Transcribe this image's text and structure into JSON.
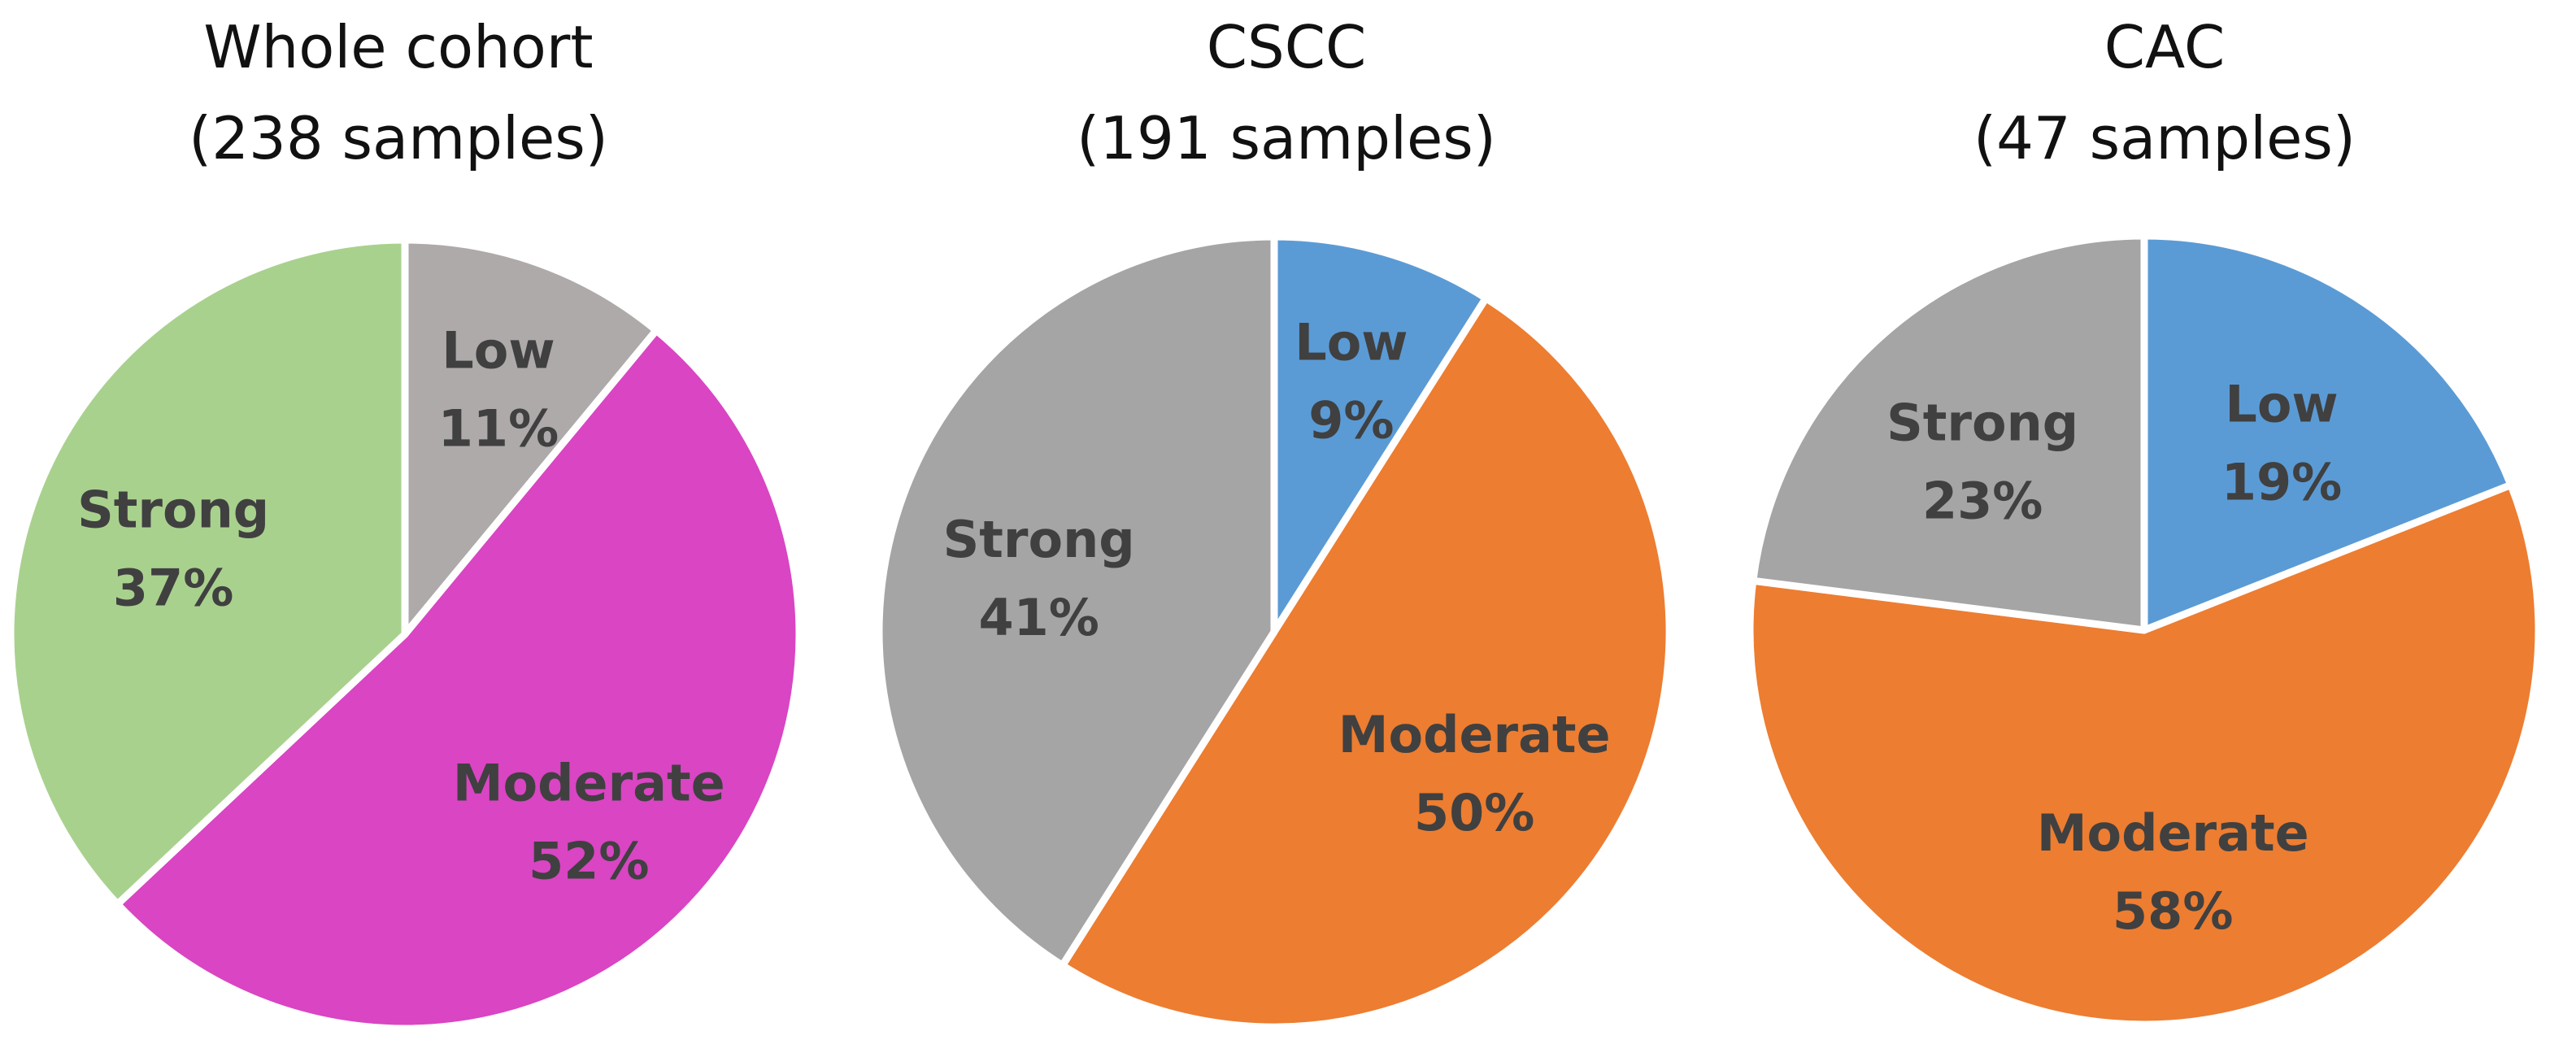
{
  "chart_data": [
    {
      "type": "pie",
      "title": "Whole cohort",
      "subtitle": "(238 samples)",
      "slices": [
        {
          "label": "Low",
          "value": 11,
          "display": "11%",
          "color": "#aeaaaa"
        },
        {
          "label": "Moderate",
          "value": 52,
          "display": "52%",
          "color": "#d945c3"
        },
        {
          "label": "Strong",
          "value": 37,
          "display": "37%",
          "color": "#a9d18e"
        }
      ]
    },
    {
      "type": "pie",
      "title": "CSCC",
      "subtitle": "(191 samples)",
      "slices": [
        {
          "label": "Low",
          "value": 9,
          "display": "9%",
          "color": "#5b9bd5"
        },
        {
          "label": "Moderate",
          "value": 50,
          "display": "50%",
          "color": "#ed7d31"
        },
        {
          "label": "Strong",
          "value": 41,
          "display": "41%",
          "color": "#a5a5a5"
        }
      ]
    },
    {
      "type": "pie",
      "title": "CAC",
      "subtitle": "(47 samples)",
      "slices": [
        {
          "label": "Low",
          "value": 19,
          "display": "19%",
          "color": "#5b9bd5"
        },
        {
          "label": "Moderate",
          "value": 58,
          "display": "58%",
          "color": "#ed7d31"
        },
        {
          "label": "Strong",
          "value": 23,
          "display": "23%",
          "color": "#a5a5a5"
        }
      ]
    }
  ]
}
